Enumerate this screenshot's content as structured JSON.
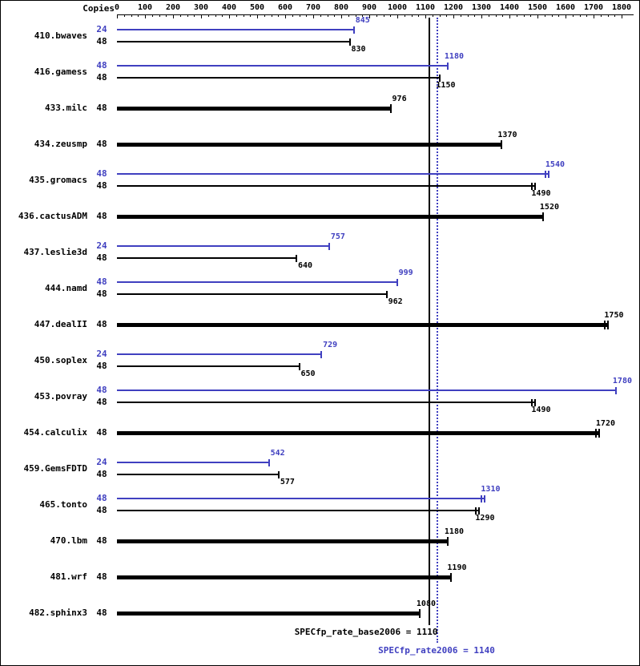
{
  "chart_data": {
    "type": "bar",
    "orientation": "horizontal",
    "copies_header": "Copies",
    "axis": {
      "min": 0,
      "max": 1800,
      "major_step": 100,
      "minor_step": 25,
      "tick_labels": [
        "0",
        "100",
        "200",
        "300",
        "400",
        "500",
        "600",
        "700",
        "800",
        "900",
        "1000",
        "1100",
        "1200",
        "1300",
        "1400",
        "1500",
        "1600",
        "1700",
        "1800"
      ]
    },
    "colors": {
      "peak": "#4040c0",
      "base": "#000000"
    },
    "reference_lines": [
      {
        "label": "SPECfp_rate_base2006 = 1110",
        "value": 1110,
        "style": "solid",
        "color": "#000000"
      },
      {
        "label": "SPECfp_rate2006 = 1140",
        "value": 1140,
        "style": "dotted",
        "color": "#4040c0"
      }
    ],
    "benchmarks": [
      {
        "name": "410.bwaves",
        "bars": [
          {
            "type": "peak",
            "copies": "24",
            "value": 845,
            "marker": "single"
          },
          {
            "type": "base",
            "copies": "48",
            "value": 830,
            "marker": "single"
          }
        ]
      },
      {
        "name": "416.gamess",
        "bars": [
          {
            "type": "peak",
            "copies": "48",
            "value": 1180,
            "marker": "single"
          },
          {
            "type": "base",
            "copies": "48",
            "value": 1150,
            "marker": "single"
          }
        ]
      },
      {
        "name": "433.milc",
        "bars": [
          {
            "type": "base",
            "copies": "48",
            "value": 976,
            "marker": "single"
          }
        ]
      },
      {
        "name": "434.zeusmp",
        "bars": [
          {
            "type": "base",
            "copies": "48",
            "value": 1370,
            "marker": "single"
          }
        ]
      },
      {
        "name": "435.gromacs",
        "bars": [
          {
            "type": "peak",
            "copies": "48",
            "value": 1540,
            "marker": "double"
          },
          {
            "type": "base",
            "copies": "48",
            "value": 1490,
            "marker": "double"
          }
        ]
      },
      {
        "name": "436.cactusADM",
        "bars": [
          {
            "type": "base",
            "copies": "48",
            "value": 1520,
            "marker": "single"
          }
        ]
      },
      {
        "name": "437.leslie3d",
        "bars": [
          {
            "type": "peak",
            "copies": "24",
            "value": 757,
            "marker": "single"
          },
          {
            "type": "base",
            "copies": "48",
            "value": 640,
            "marker": "single"
          }
        ]
      },
      {
        "name": "444.namd",
        "bars": [
          {
            "type": "peak",
            "copies": "48",
            "value": 999,
            "marker": "single"
          },
          {
            "type": "base",
            "copies": "48",
            "value": 962,
            "marker": "single"
          }
        ]
      },
      {
        "name": "447.dealII",
        "bars": [
          {
            "type": "base",
            "copies": "48",
            "value": 1750,
            "marker": "double"
          }
        ]
      },
      {
        "name": "450.soplex",
        "bars": [
          {
            "type": "peak",
            "copies": "24",
            "value": 729,
            "marker": "single"
          },
          {
            "type": "base",
            "copies": "48",
            "value": 650,
            "marker": "single"
          }
        ]
      },
      {
        "name": "453.povray",
        "bars": [
          {
            "type": "peak",
            "copies": "48",
            "value": 1780,
            "marker": "single"
          },
          {
            "type": "base",
            "copies": "48",
            "value": 1490,
            "marker": "double"
          }
        ]
      },
      {
        "name": "454.calculix",
        "bars": [
          {
            "type": "base",
            "copies": "48",
            "value": 1720,
            "marker": "double"
          }
        ]
      },
      {
        "name": "459.GemsFDTD",
        "bars": [
          {
            "type": "peak",
            "copies": "24",
            "value": 542,
            "marker": "single"
          },
          {
            "type": "base",
            "copies": "48",
            "value": 577,
            "marker": "single"
          }
        ]
      },
      {
        "name": "465.tonto",
        "bars": [
          {
            "type": "peak",
            "copies": "48",
            "value": 1310,
            "marker": "double"
          },
          {
            "type": "base",
            "copies": "48",
            "value": 1290,
            "marker": "double"
          }
        ]
      },
      {
        "name": "470.lbm",
        "bars": [
          {
            "type": "base",
            "copies": "48",
            "value": 1180,
            "marker": "single"
          }
        ]
      },
      {
        "name": "481.wrf",
        "bars": [
          {
            "type": "base",
            "copies": "48",
            "value": 1190,
            "marker": "single"
          }
        ]
      },
      {
        "name": "482.sphinx3",
        "bars": [
          {
            "type": "base",
            "copies": "48",
            "value": 1080,
            "marker": "single"
          }
        ]
      }
    ]
  }
}
